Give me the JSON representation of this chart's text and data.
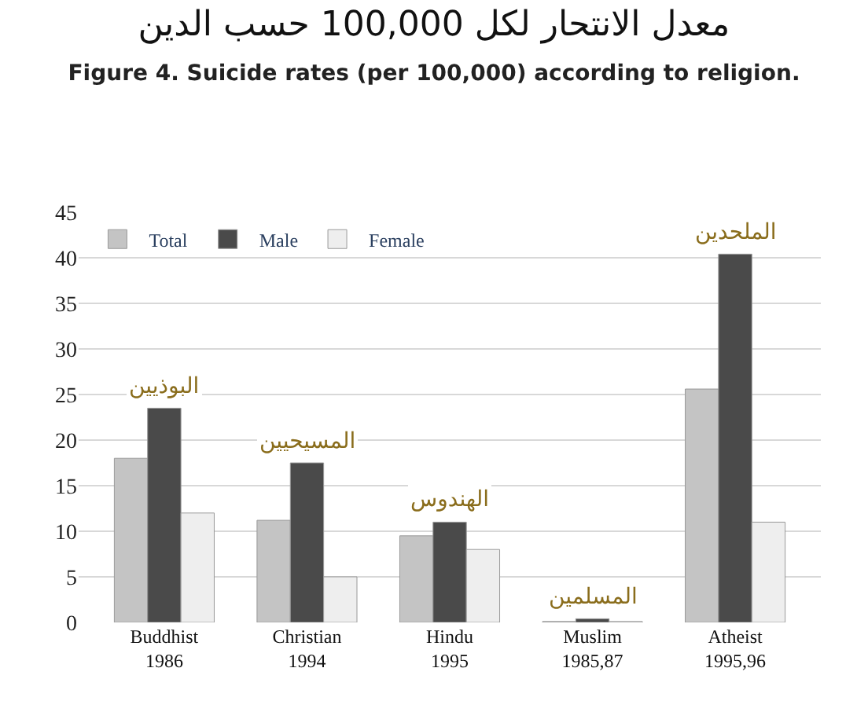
{
  "chart_data": {
    "type": "bar",
    "title": "معدل الانتحار لكل 100,000 حسب الدين",
    "subtitle": "Figure 4. Suicide rates (per 100,000) according to religion.",
    "categories": [
      "Buddhist\n1986",
      "Christian\n1994",
      "Hindu\n1995",
      "Muslim\n1985,87",
      "Atheist\n1995,96"
    ],
    "series": [
      {
        "name": "Total",
        "color": "#c4c4c4",
        "values": [
          18,
          11.2,
          9.5,
          0.1,
          25.6
        ]
      },
      {
        "name": "Male",
        "color": "#4a4a4a",
        "values": [
          23.5,
          17.5,
          11,
          0.4,
          40.4
        ]
      },
      {
        "name": "Female",
        "color": "#eeeeee",
        "values": [
          12,
          5,
          8,
          0.1,
          11
        ]
      }
    ],
    "annotations": [
      "البوذيين",
      "المسيحيين",
      "الهندوس",
      "المسلمين",
      "الملحدين"
    ],
    "ylim": [
      0,
      45
    ],
    "yticks": [
      0,
      5,
      10,
      15,
      20,
      25,
      30,
      35,
      40,
      45
    ],
    "grid": "y",
    "legend": "top left"
  }
}
